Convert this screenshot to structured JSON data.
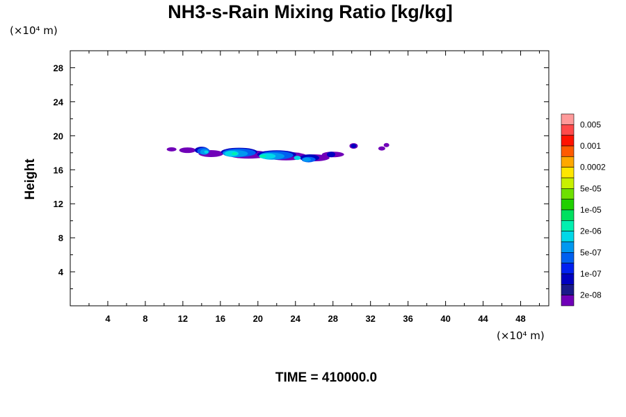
{
  "chart_data": {
    "type": "heatmap",
    "title": "NH3-s-Rain Mixing Ratio [kg/kg]",
    "ylabel": "Height",
    "xlabel": "",
    "x_unit": "(×10⁴ m)",
    "y_unit": "(×10⁴ m)",
    "xlim": [
      0,
      51
    ],
    "ylim": [
      0,
      30
    ],
    "x_ticks": [
      "4",
      "8",
      "12",
      "16",
      "20",
      "24",
      "28",
      "32",
      "36",
      "40",
      "44",
      "48"
    ],
    "y_ticks": [
      "4",
      "8",
      "12",
      "16",
      "20",
      "24",
      "28"
    ],
    "colorbar": {
      "labels": [
        "0.005",
        "0.001",
        "0.0002",
        "5e-05",
        "1e-05",
        "2e-06",
        "5e-07",
        "1e-07",
        "2e-08"
      ],
      "colors": [
        "#ff9a9a",
        "#ff4a4a",
        "#ff1200",
        "#ff5a00",
        "#ffa800",
        "#ffe600",
        "#c8f000",
        "#6ee000",
        "#20d000",
        "#00e060",
        "#00f0b0",
        "#00d8e8",
        "#0098f0",
        "#0060f0",
        "#0020f0",
        "#0000c0",
        "#1a1a8a",
        "#7000b8"
      ]
    },
    "features": [
      {
        "level": "2e-08",
        "x_range": [
          10.8,
          34.0
        ],
        "y_range": [
          16.7,
          19.0
        ]
      },
      {
        "level": "1e-07",
        "x_range": [
          13.0,
          30.5
        ],
        "y_range": [
          16.7,
          19.0
        ]
      },
      {
        "level": "5e-07",
        "x_range": [
          14.0,
          27.5
        ],
        "y_range": [
          17.0,
          18.8
        ]
      }
    ],
    "grid": false
  },
  "footer": {
    "time_label": "TIME = 410000.0"
  }
}
